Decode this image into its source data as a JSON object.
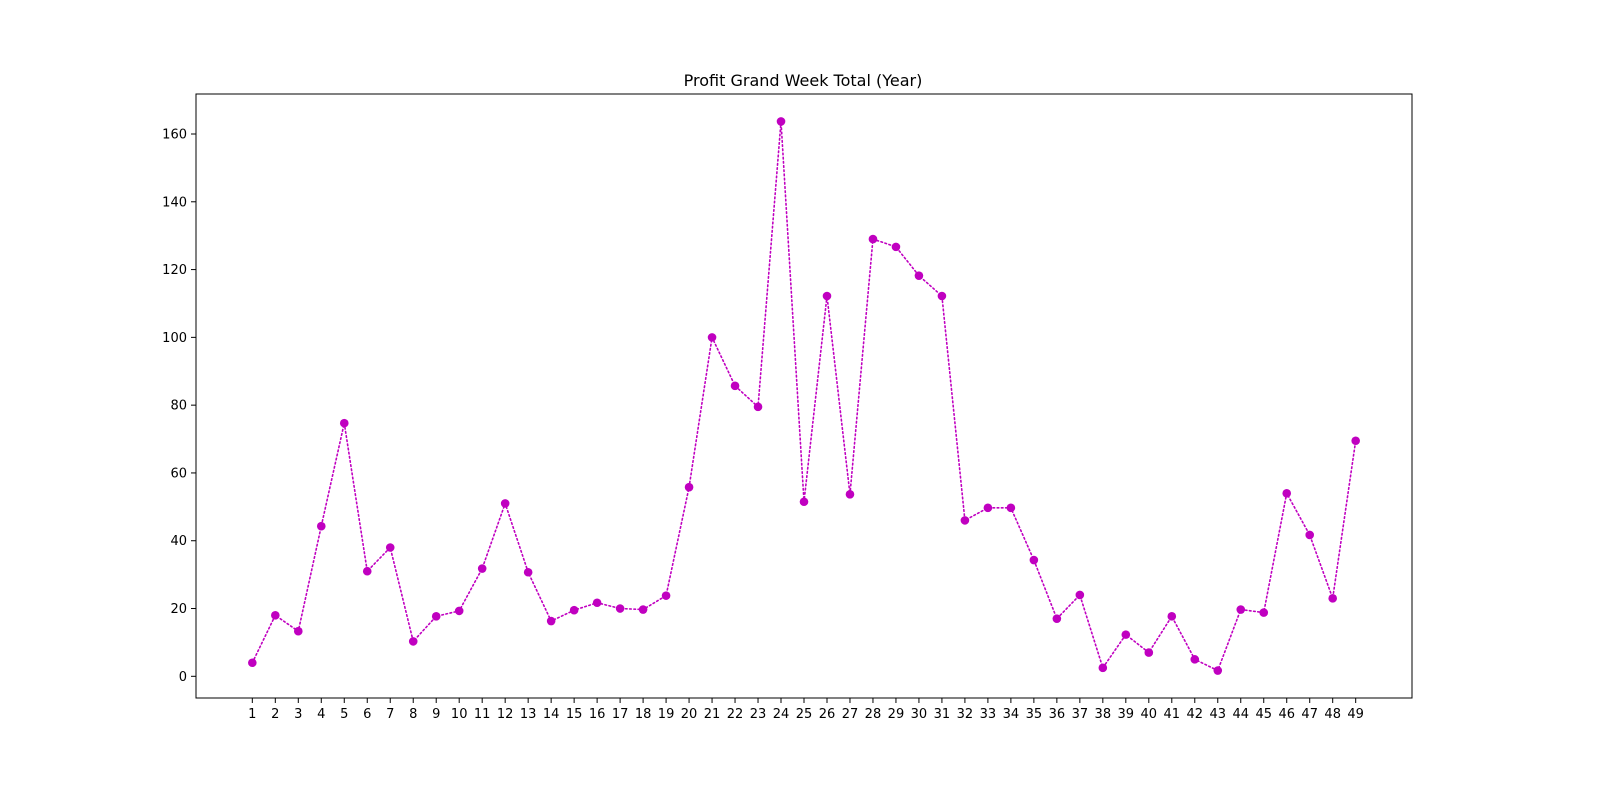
{
  "chart_data": {
    "type": "line",
    "title": "Profit Grand Week Total (Year)",
    "xlabel": "",
    "ylabel": "",
    "x": [
      1,
      2,
      3,
      4,
      5,
      6,
      7,
      8,
      9,
      10,
      11,
      12,
      13,
      14,
      15,
      16,
      17,
      18,
      19,
      20,
      21,
      22,
      23,
      24,
      25,
      26,
      27,
      28,
      29,
      30,
      31,
      32,
      33,
      34,
      35,
      36,
      37,
      38,
      39,
      40,
      41,
      42,
      43,
      44,
      45,
      46,
      47,
      48,
      49
    ],
    "series": [
      {
        "values": [
          4,
          18,
          13.3,
          44.3,
          74.7,
          31,
          38,
          10.3,
          17.7,
          19.3,
          31.8,
          51,
          30.7,
          16.3,
          19.5,
          21.7,
          20,
          19.7,
          23.8,
          55.8,
          100,
          85.7,
          79.5,
          163.7,
          51.5,
          112.2,
          53.7,
          129,
          126.7,
          118.2,
          112.2,
          46,
          49.7,
          49.7,
          34.3,
          17,
          24,
          2.5,
          12.3,
          7,
          17.7,
          5,
          1.7,
          19.7,
          18.8,
          54,
          41.7,
          23,
          69.5
        ],
        "color": "#c000c0",
        "line_style": "dotted",
        "marker": "circle"
      }
    ],
    "xticks": [
      "1",
      "2",
      "3",
      "4",
      "5",
      "6",
      "7",
      "8",
      "9",
      "10",
      "11",
      "12",
      "13",
      "14",
      "15",
      "16",
      "17",
      "18",
      "19",
      "20",
      "21",
      "22",
      "23",
      "24",
      "25",
      "26",
      "27",
      "28",
      "29",
      "30",
      "31",
      "32",
      "33",
      "34",
      "35",
      "36",
      "37",
      "38",
      "39",
      "40",
      "41",
      "42",
      "43",
      "44",
      "45",
      "46",
      "47",
      "48",
      "49"
    ],
    "yticks": [
      "0",
      "20",
      "40",
      "60",
      "80",
      "100",
      "120",
      "140",
      "160"
    ],
    "ytick_values": [
      0,
      20,
      40,
      60,
      80,
      100,
      120,
      140,
      160
    ],
    "xlim": [
      -1.45,
      51.45
    ],
    "ylim": [
      -6.4,
      171.8
    ],
    "grid": false,
    "legend": "none"
  }
}
